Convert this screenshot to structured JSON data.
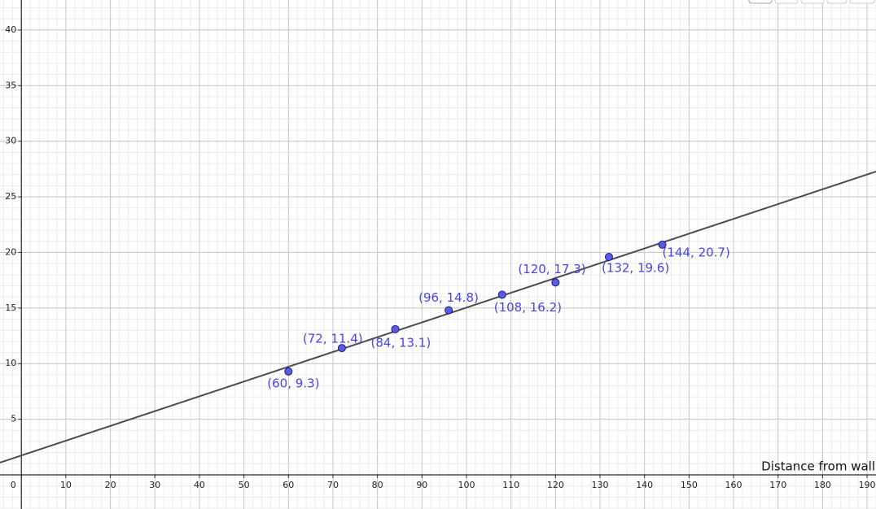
{
  "chart_data": {
    "type": "scatter",
    "x_label": "Distance from wall",
    "x": [
      60,
      72,
      84,
      96,
      108,
      120,
      132,
      144
    ],
    "values": [
      9.3,
      11.4,
      13.1,
      14.8,
      16.2,
      17.3,
      19.6,
      20.7
    ],
    "value_labels": [
      "(60, 9.3)",
      "(72, 11.4)",
      "(84, 13.1)",
      "(96, 14.8)",
      "(108, 16.2)",
      "(120, 17.3)",
      "(132, 19.6)",
      "(144, 20.7)"
    ],
    "line": {
      "slope": 0.133,
      "intercept": 1.74,
      "color": "#4d4d4d"
    },
    "color": "#5a5ae6",
    "xlim": [
      -4.8,
      192
    ],
    "ylim": [
      -3.07,
      42.7
    ],
    "xticks": [
      0,
      10,
      20,
      30,
      40,
      50,
      60,
      70,
      80,
      90,
      100,
      110,
      120,
      130,
      140,
      150,
      160,
      170,
      180,
      190
    ],
    "yticks": [
      5,
      10,
      15,
      20,
      25,
      30,
      35,
      40
    ],
    "grid": true
  }
}
